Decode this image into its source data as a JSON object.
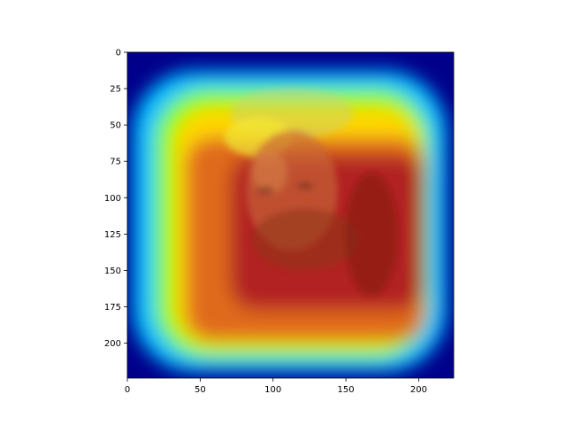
{
  "chart_data": {
    "type": "heatmap",
    "title": "",
    "xlabel": "",
    "ylabel": "",
    "xlim": [
      0,
      224
    ],
    "ylim": [
      224,
      0
    ],
    "x_ticks": [
      0,
      50,
      100,
      150,
      200
    ],
    "y_ticks": [
      0,
      25,
      50,
      75,
      100,
      125,
      150,
      175,
      200
    ],
    "x_tick_labels": [
      "0",
      "50",
      "100",
      "150",
      "200"
    ],
    "y_tick_labels": [
      "0",
      "25",
      "50",
      "75",
      "100",
      "125",
      "150",
      "175",
      "200"
    ],
    "colormap": "jet",
    "overlay": "saliency heatmap over portrait photo of a bearded man",
    "grid": false,
    "colors": {
      "low": "#00008b",
      "mid_low": "#00bfff",
      "mid": "#7fff00",
      "mid_high": "#ffd700",
      "high": "#b22222"
    }
  }
}
